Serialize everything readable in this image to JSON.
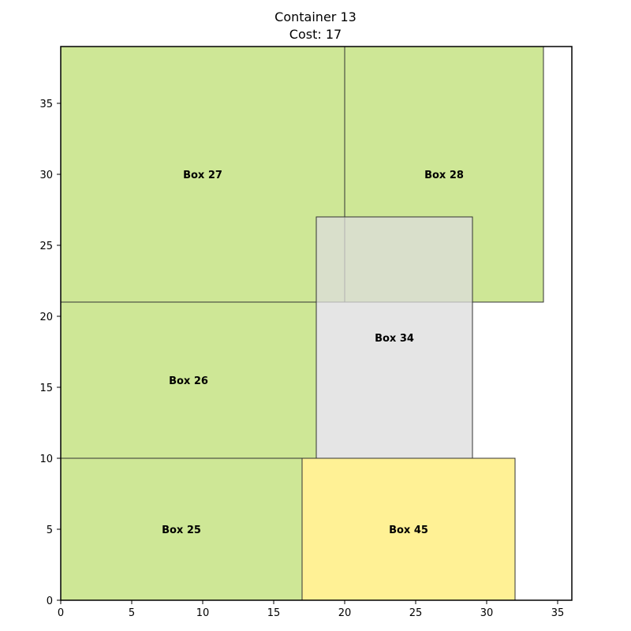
{
  "title": {
    "line1": "Container 13",
    "line2": "Cost: 17"
  },
  "chart_data": {
    "type": "diagram",
    "container": {
      "width": 36,
      "height": 39
    },
    "xlim": [
      0,
      36
    ],
    "ylim": [
      0,
      39
    ],
    "xticks": [
      0,
      5,
      10,
      15,
      20,
      25,
      30,
      35
    ],
    "yticks": [
      0,
      5,
      10,
      15,
      20,
      25,
      30,
      35
    ],
    "boxes": [
      {
        "label": "Box 25",
        "x": 0,
        "y": 0,
        "w": 17,
        "h": 10,
        "color": "#c5e384",
        "opacity": 0.85
      },
      {
        "label": "Box 26",
        "x": 0,
        "y": 10,
        "w": 18,
        "h": 11,
        "color": "#c5e384",
        "opacity": 0.85
      },
      {
        "label": "Box 27",
        "x": 0,
        "y": 21,
        "w": 20,
        "h": 18,
        "color": "#c5e384",
        "opacity": 0.85
      },
      {
        "label": "Box 28",
        "x": 20,
        "y": 21,
        "w": 14,
        "h": 18,
        "color": "#c5e384",
        "opacity": 0.85
      },
      {
        "label": "Box 45",
        "x": 17,
        "y": 0,
        "w": 15,
        "h": 10,
        "color": "#fff08a",
        "opacity": 0.9
      },
      {
        "label": "Box 34",
        "x": 18,
        "y": 10,
        "w": 11,
        "h": 17,
        "color": "#dcdcdc",
        "opacity": 0.75
      }
    ]
  }
}
